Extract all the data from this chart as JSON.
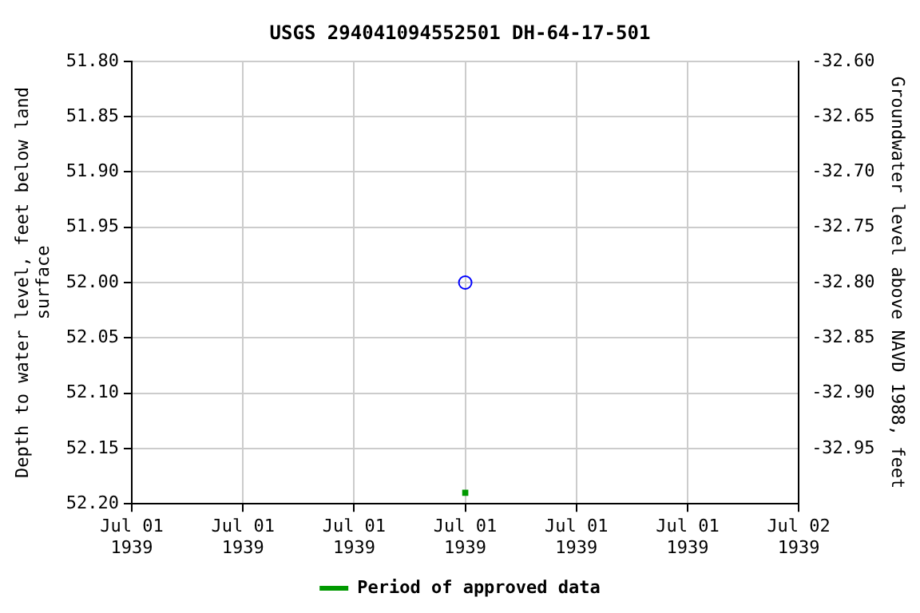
{
  "chart_data": {
    "type": "scatter",
    "title": "USGS 294041094552501 DH-64-17-501",
    "ylabel": "Depth to water level, feet below land\nsurface",
    "y2label": "Groundwater level above NAVD 1988, feet",
    "xlim": [
      "1939-07-01T00:00",
      "1939-07-02T00:00"
    ],
    "xticks": [
      {
        "value": "1939-07-01T00:00",
        "label": "Jul 01\n1939"
      },
      {
        "value": "1939-07-01T04:00",
        "label": "Jul 01\n1939"
      },
      {
        "value": "1939-07-01T08:00",
        "label": "Jul 01\n1939"
      },
      {
        "value": "1939-07-01T12:00",
        "label": "Jul 01\n1939"
      },
      {
        "value": "1939-07-01T16:00",
        "label": "Jul 01\n1939"
      },
      {
        "value": "1939-07-01T20:00",
        "label": "Jul 01\n1939"
      },
      {
        "value": "1939-07-02T00:00",
        "label": "Jul 02\n1939"
      }
    ],
    "ylim": [
      52.2,
      51.8
    ],
    "yticks": [
      {
        "value": 51.8,
        "label": "51.80"
      },
      {
        "value": 51.85,
        "label": "51.85"
      },
      {
        "value": 51.9,
        "label": "51.90"
      },
      {
        "value": 51.95,
        "label": "51.95"
      },
      {
        "value": 52.0,
        "label": "52.00"
      },
      {
        "value": 52.05,
        "label": "52.05"
      },
      {
        "value": 52.1,
        "label": "52.10"
      },
      {
        "value": 52.15,
        "label": "52.15"
      },
      {
        "value": 52.2,
        "label": "52.20"
      }
    ],
    "y2lim": [
      -33.0,
      -32.6
    ],
    "y2ticks": [
      {
        "value": -32.6,
        "label": "-32.60"
      },
      {
        "value": -32.65,
        "label": "-32.65"
      },
      {
        "value": -32.7,
        "label": "-32.70"
      },
      {
        "value": -32.75,
        "label": "-32.75"
      },
      {
        "value": -32.8,
        "label": "-32.80"
      },
      {
        "value": -32.85,
        "label": "-32.85"
      },
      {
        "value": -32.9,
        "label": "-32.90"
      },
      {
        "value": -32.95,
        "label": "-32.95"
      }
    ],
    "grid": true,
    "legend": "bottom",
    "series": [
      {
        "type": "scatter",
        "color": "#0000ff",
        "x": [
          "1939-07-01T12:00"
        ],
        "values": [
          52.0
        ],
        "marker": "circle"
      },
      {
        "type": "scatter",
        "name": "Period of approved data",
        "color": "#009900",
        "x": [
          "1939-07-01T12:00"
        ],
        "values": [
          52.19
        ],
        "marker": "square"
      }
    ]
  }
}
